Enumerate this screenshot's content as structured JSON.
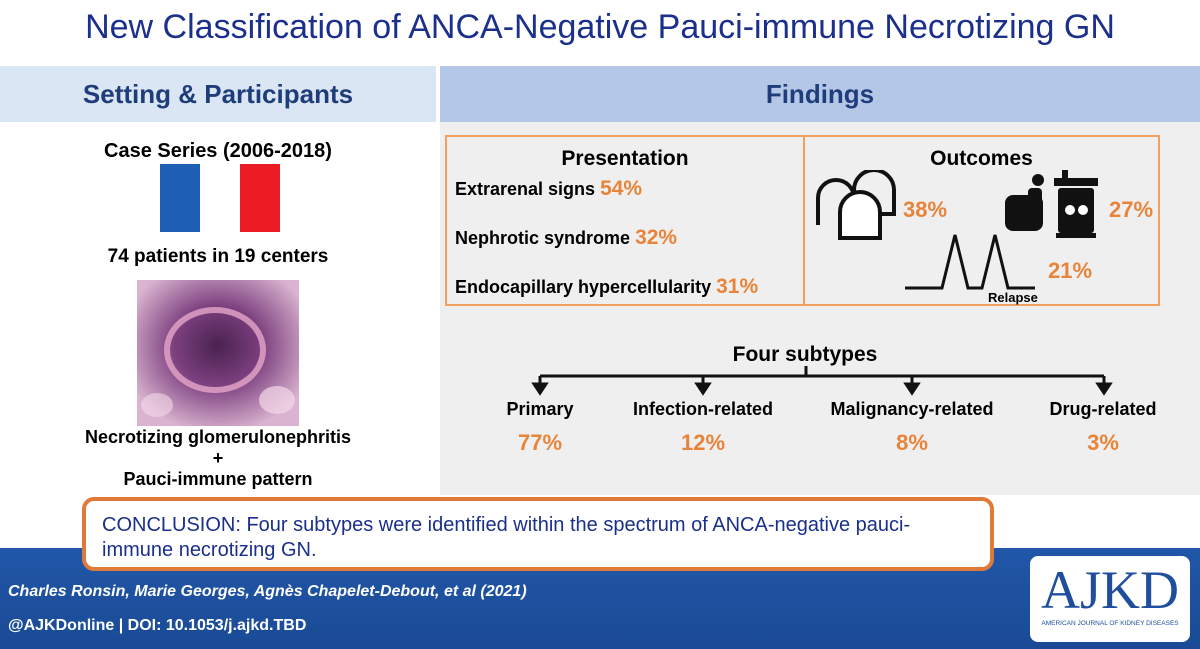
{
  "header": {
    "title": "New Classification of ANCA-Negative Pauci-immune Necrotizing GN"
  },
  "left": {
    "heading": "Setting & Participants",
    "study": "Case Series (2006-2018)",
    "patients": "74 patients in 19 centers",
    "caption": [
      "Necrotizing glomerulonephritis",
      "+",
      "Pauci-immune pattern"
    ]
  },
  "findings": {
    "heading": "Findings",
    "presentation": {
      "title": "Presentation",
      "items": [
        {
          "label": "Extrarenal signs",
          "value": "54%"
        },
        {
          "label": "Nephrotic syndrome",
          "value": "32%"
        },
        {
          "label": "Endocapillary hypercellularity",
          "value": "31%"
        }
      ]
    },
    "outcomes": {
      "title": "Outcomes",
      "items": [
        {
          "value": "38%"
        },
        {
          "value": "27%"
        },
        {
          "value": "21%",
          "label": "Relapse"
        }
      ]
    },
    "subtypes": {
      "title": "Four subtypes",
      "items": [
        {
          "name": "Primary",
          "value": "77%"
        },
        {
          "name": "Infection-related",
          "value": "12%"
        },
        {
          "name": "Malignancy-related",
          "value": "8%"
        },
        {
          "name": "Drug-related",
          "value": "3%"
        }
      ]
    }
  },
  "conclusion": "CONCLUSION: Four subtypes were identified within the spectrum of ANCA-negative pauci-immune necrotizing GN.",
  "footer": {
    "authors": "Charles Ronsin, Marie Georges, Agnès Chapelet-Debout, et al  (2021)",
    "doi": "@AJKDonline | DOI: 10.1053/j.ajkd.TBD",
    "logo": {
      "name": "AJKD",
      "tagline": "AMERICAN JOURNAL OF KIDNEY DISEASES"
    }
  }
}
